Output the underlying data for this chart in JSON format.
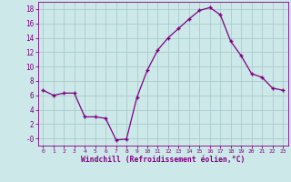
{
  "x": [
    0,
    1,
    2,
    3,
    4,
    5,
    6,
    7,
    8,
    9,
    10,
    11,
    12,
    13,
    14,
    15,
    16,
    17,
    18,
    19,
    20,
    21,
    22,
    23
  ],
  "y": [
    6.7,
    6.0,
    6.3,
    6.3,
    3.0,
    3.0,
    2.8,
    -0.2,
    -0.1,
    5.7,
    9.5,
    12.3,
    14.0,
    15.3,
    16.6,
    17.8,
    18.2,
    17.2,
    13.5,
    11.5,
    9.0,
    8.5,
    7.0,
    6.7
  ],
  "line_color": "#800080",
  "marker": "+",
  "marker_color": "#800080",
  "bg_color": "#cce8e8",
  "grid_color": "#aacccc",
  "xlabel": "Windchill (Refroidissement éolien,°C)",
  "xlabel_color": "#800080",
  "tick_color": "#800080",
  "ylim": [
    -1,
    19
  ],
  "xlim": [
    -0.5,
    23.5
  ],
  "yticks": [
    0,
    2,
    4,
    6,
    8,
    10,
    12,
    14,
    16,
    18
  ],
  "ytick_labels": [
    "-0",
    "2",
    "4",
    "6",
    "8",
    "10",
    "12",
    "14",
    "16",
    "18"
  ],
  "xticks": [
    0,
    1,
    2,
    3,
    4,
    5,
    6,
    7,
    8,
    9,
    10,
    11,
    12,
    13,
    14,
    15,
    16,
    17,
    18,
    19,
    20,
    21,
    22,
    23
  ]
}
